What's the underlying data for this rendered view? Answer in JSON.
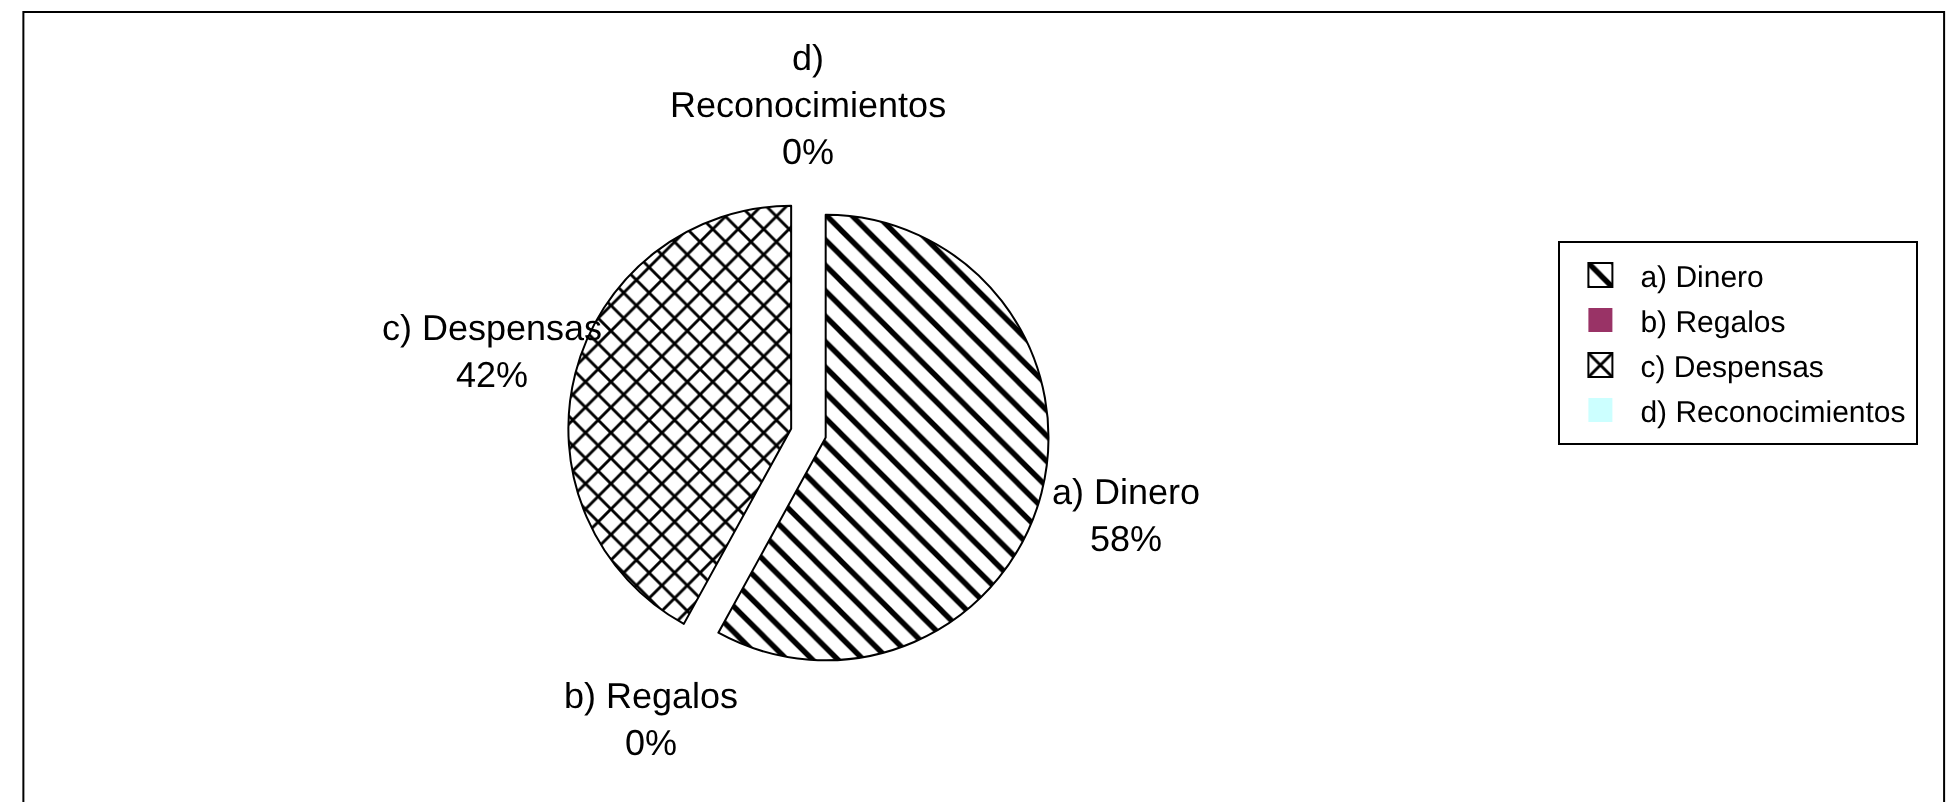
{
  "chart_data": {
    "type": "pie",
    "categories": [
      "a) Dinero",
      "b) Regalos",
      "c) Despensas",
      "d) Reconocimientos"
    ],
    "values": [
      58,
      0,
      42,
      0
    ],
    "colors": [
      "#000000",
      "#993366",
      "#000000",
      "#ccffff"
    ],
    "value_labels": [
      "58%",
      "0%",
      "42%",
      "0%"
    ],
    "legend": "right"
  }
}
